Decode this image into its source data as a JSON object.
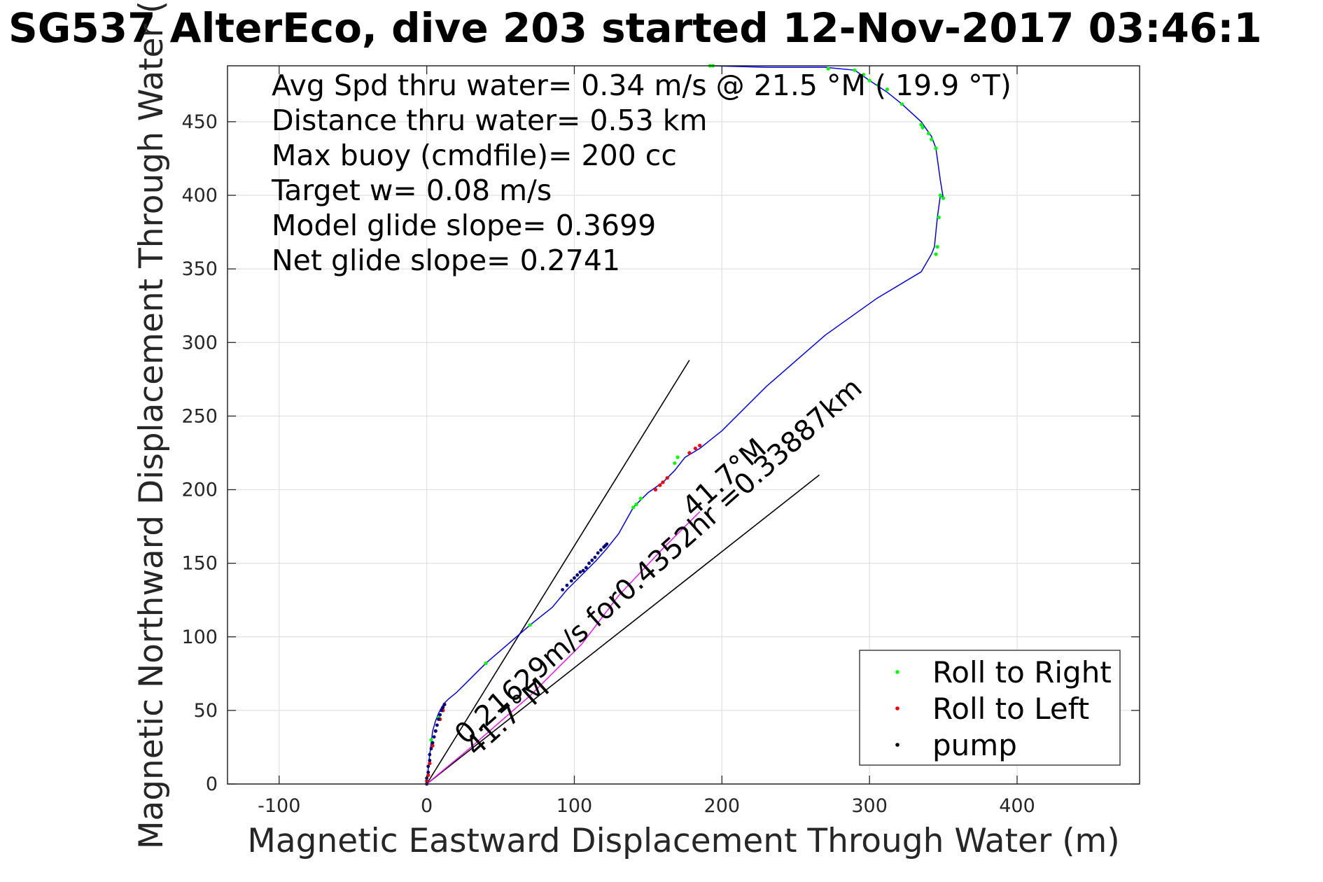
{
  "chart_data": {
    "type": "line",
    "title": "SG537 AlterEco, dive 203 started 12-Nov-2017 03:46:1",
    "xlabel": "Magnetic Eastward Displacement Through Water (m)",
    "ylabel": "Magnetic Northward Displacement Through Water (",
    "xlim": [
      -135,
      483
    ],
    "ylim": [
      0,
      488
    ],
    "xticks": [
      -100,
      0,
      100,
      200,
      300,
      400
    ],
    "xtick_labels": [
      "-100",
      "0",
      "100",
      "200",
      "300",
      "400"
    ],
    "yticks": [
      0,
      50,
      100,
      150,
      200,
      250,
      300,
      350,
      400,
      450
    ],
    "ytick_labels": [
      "0",
      "50",
      "100",
      "150",
      "200",
      "250",
      "300",
      "350",
      "400",
      "450"
    ],
    "grid": true,
    "info_lines": [
      "Avg Spd thru water=  0.34 m/s @  21.5 °M ( 19.9 °T)",
      "Distance thru water=  0.53 km",
      "Max buoy (cmdfile)= 200 cc",
      "Target w= 0.08 m/s",
      "Model glide slope= 0.3699",
      "Net glide slope= 0.2741"
    ],
    "track": {
      "color": "#0000ff",
      "x": [
        0,
        1,
        2,
        3,
        4,
        6,
        8,
        10,
        12,
        15,
        20,
        28,
        40,
        55,
        70,
        85,
        95,
        105,
        115,
        122,
        130,
        140,
        150,
        160,
        168,
        175,
        185,
        200,
        230,
        270,
        305,
        335,
        342,
        344,
        346,
        348,
        350,
        348,
        345,
        342,
        335,
        322,
        312,
        300,
        290,
        270,
        230,
        192
      ],
      "y": [
        0,
        10,
        20,
        28,
        36,
        43,
        48,
        52,
        55,
        58,
        62,
        70,
        82,
        95,
        108,
        120,
        132,
        142,
        152,
        160,
        170,
        188,
        198,
        205,
        213,
        222,
        228,
        240,
        270,
        305,
        330,
        348,
        360,
        365,
        385,
        400,
        398,
        410,
        432,
        440,
        450,
        462,
        470,
        478,
        485,
        487,
        487,
        488
      ]
    },
    "roll_right": {
      "color": "#00ff00",
      "x": [
        3,
        8,
        40,
        70,
        140,
        142,
        145,
        168,
        170,
        345,
        346,
        347,
        348,
        350,
        342,
        345,
        340,
        336,
        335,
        322,
        312,
        306,
        300,
        296,
        290,
        272,
        192,
        194
      ],
      "y": [
        30,
        45,
        82,
        108,
        188,
        190,
        194,
        218,
        222,
        360,
        365,
        385,
        400,
        398,
        438,
        432,
        442,
        446,
        448,
        462,
        472,
        475,
        478,
        482,
        485,
        486,
        488,
        488
      ]
    },
    "roll_left": {
      "color": "#ff0000",
      "x": [
        0,
        1,
        2,
        4,
        6,
        9,
        11,
        12,
        155,
        158,
        160,
        163,
        178,
        182,
        185
      ],
      "y": [
        2,
        6,
        14,
        26,
        36,
        44,
        50,
        54,
        200,
        203,
        205,
        208,
        225,
        228,
        230
      ],
      "line": {
        "color": "#ff00ff",
        "x": [
          0,
          30,
          70,
          105,
          130,
          160,
          185
        ],
        "y": [
          0,
          25,
          60,
          95,
          128,
          160,
          185
        ]
      }
    },
    "pump": {
      "color": "#000080",
      "x": [
        0,
        0,
        1,
        1,
        2,
        2,
        3,
        4,
        5,
        6,
        7,
        8,
        9,
        10,
        11,
        12,
        92,
        95,
        98,
        100,
        102,
        104,
        106,
        108,
        110,
        112,
        114,
        116,
        118,
        120,
        121,
        122
      ],
      "y": [
        0,
        4,
        8,
        12,
        16,
        20,
        24,
        28,
        32,
        36,
        40,
        44,
        47,
        50,
        52,
        54,
        132,
        135,
        138,
        140,
        142,
        144,
        145,
        147,
        150,
        152,
        154,
        157,
        159,
        161,
        162,
        163
      ]
    },
    "lines": [
      {
        "x": [
          0,
          178
        ],
        "y": [
          0,
          288
        ]
      },
      {
        "x": [
          0,
          266
        ],
        "y": [
          0,
          210
        ]
      }
    ],
    "annotations": [
      {
        "text": "0.21629m/s for0.4352hr =0.33887km",
        "x": 20,
        "y": 25,
        "angle_deg": 41.7
      },
      {
        "text": "41.7°M",
        "x": 30,
        "y": 18,
        "angle_deg": 41.7
      },
      {
        "text": "41.7°M",
        "x": 180,
        "y": 180,
        "angle_deg": 41.7
      }
    ],
    "legend": {
      "placement": "bottom-right",
      "entries": [
        {
          "label": "Roll to Right",
          "color": "#00ff00"
        },
        {
          "label": "Roll to Left",
          "color": "#ff0000"
        },
        {
          "label": "pump",
          "color": "#000000"
        }
      ]
    }
  }
}
